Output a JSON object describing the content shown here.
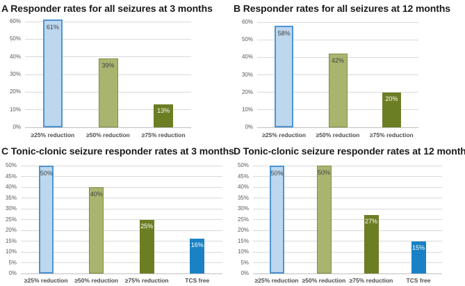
{
  "figure": {
    "background": "#ffffff"
  },
  "colors": {
    "title": "#1a1a1a",
    "gridline": "#d9d9d9",
    "axis_line": "#bfbfbf",
    "tick_text": "#595959",
    "category_text": "#4d4d4d",
    "label_dark": "#3f3f3f",
    "label_light": "#ffffff",
    "light_blue_fill": "#BDD7EE",
    "light_blue_border": "#4D94D2",
    "olive_fill": "#A9B56F",
    "olive_border": "#7E8D42",
    "dark_olive_fill": "#6C7E24",
    "blue_fill": "#1A82C4"
  },
  "chart_data": [
    {
      "id": "A",
      "type": "bar",
      "title": "A Responder rates for all seizures at 3 months",
      "categories": [
        "≥25% reduction",
        "≥50% reduction",
        "≥75% reduction"
      ],
      "values": [
        61,
        39,
        13
      ],
      "value_labels": [
        "61%",
        "39%",
        "13%"
      ],
      "ylim": [
        0,
        60
      ],
      "ytick_step": 10,
      "ytick_labels": [
        "0%",
        "10%",
        "20%",
        "30%",
        "40%",
        "50%",
        "60%"
      ],
      "grid": true,
      "legend": "none",
      "bar_styles": [
        "lightblue",
        "olive",
        "darkolive"
      ],
      "label_tones": [
        "dark",
        "dark",
        "light"
      ]
    },
    {
      "id": "B",
      "type": "bar",
      "title": "B Responder rates for all seizures at 12 months",
      "categories": [
        "≥25% reduction",
        "≥50% reduction",
        "≥75% reduction"
      ],
      "values": [
        58,
        42,
        20
      ],
      "value_labels": [
        "58%",
        "42%",
        "20%"
      ],
      "ylim": [
        0,
        60
      ],
      "ytick_step": 10,
      "ytick_labels": [
        "0%",
        "10%",
        "20%",
        "30%",
        "40%",
        "50%",
        "60%"
      ],
      "grid": true,
      "legend": "none",
      "bar_styles": [
        "lightblue",
        "olive",
        "darkolive"
      ],
      "label_tones": [
        "dark",
        "dark",
        "light"
      ]
    },
    {
      "id": "C",
      "type": "bar",
      "title": "C Tonic-clonic seizure responder rates at 3 months",
      "categories": [
        "≥25% reduction",
        "≥50% reduction",
        "≥75% reduction",
        "TCS free"
      ],
      "values": [
        50,
        40,
        25,
        16
      ],
      "value_labels": [
        "50%",
        "40%",
        "25%",
        "16%"
      ],
      "ylim": [
        0,
        50
      ],
      "ytick_step": 5,
      "ytick_labels": [
        "0%",
        "5%",
        "10%",
        "15%",
        "20%",
        "25%",
        "30%",
        "35%",
        "40%",
        "45%",
        "50%"
      ],
      "grid": true,
      "legend": "none",
      "bar_styles": [
        "lightblue",
        "olive",
        "darkolive",
        "blue"
      ],
      "label_tones": [
        "dark",
        "dark",
        "light",
        "light"
      ]
    },
    {
      "id": "D",
      "type": "bar",
      "title": "D Tonic-clonic seizure responder rates at 12 months",
      "categories": [
        "≥25% reduction",
        "≥50% reduction",
        "≥75% reduction",
        "TCS free"
      ],
      "values": [
        50,
        50,
        27,
        15
      ],
      "value_labels": [
        "50%",
        "50%",
        "27%",
        "15%"
      ],
      "ylim": [
        0,
        50
      ],
      "ytick_step": 5,
      "ytick_labels": [
        "0%",
        "5%",
        "10%",
        "15%",
        "20%",
        "25%",
        "30%",
        "35%",
        "40%",
        "45%",
        "50%"
      ],
      "grid": true,
      "legend": "none",
      "bar_styles": [
        "lightblue",
        "olive",
        "darkolive",
        "blue"
      ],
      "label_tones": [
        "dark",
        "dark",
        "light",
        "light"
      ]
    }
  ]
}
